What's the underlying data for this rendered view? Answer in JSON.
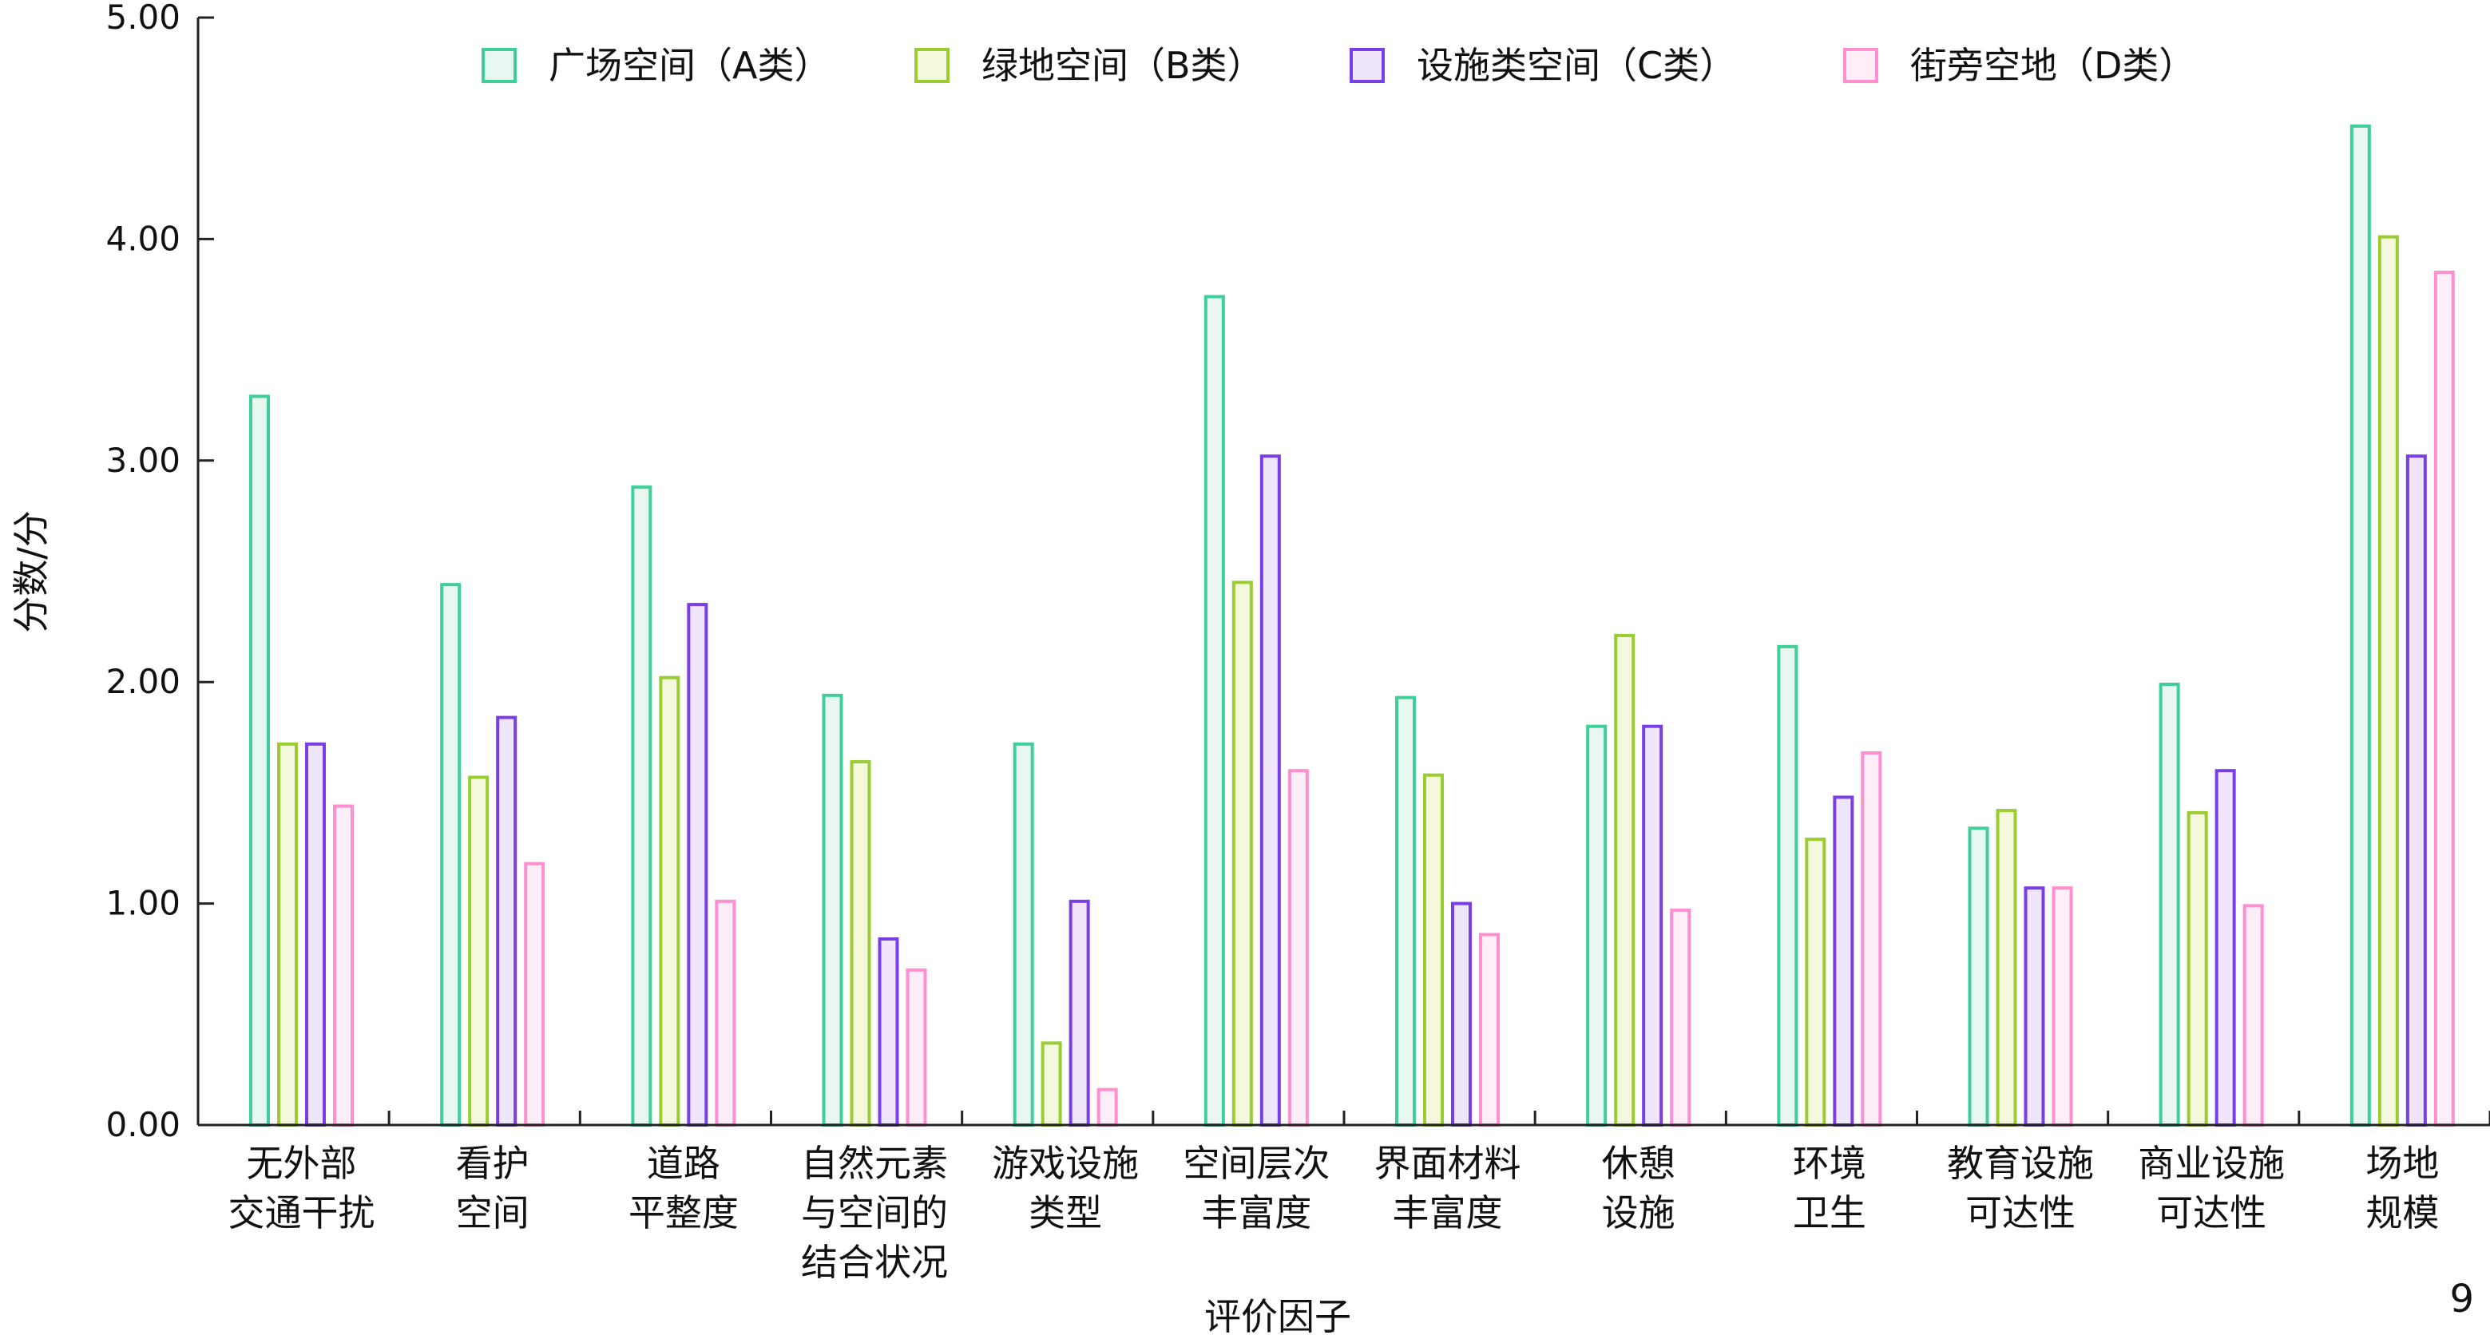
{
  "figure_number": "9",
  "chart_data": {
    "type": "bar",
    "xlabel": "评价因子",
    "ylabel": "分数/分",
    "ylim": [
      0,
      5
    ],
    "yticks": [
      "0.00",
      "1.00",
      "2.00",
      "3.00",
      "4.00",
      "5.00"
    ],
    "grid": false,
    "legend_position": "top",
    "categories": [
      [
        "无外部",
        "交通干扰"
      ],
      [
        "看护",
        "空间"
      ],
      [
        "道路",
        "平整度"
      ],
      [
        "自然元素",
        "与空间的",
        "结合状况"
      ],
      [
        "游戏设施",
        "类型"
      ],
      [
        "空间层次",
        "丰富度"
      ],
      [
        "界面材料",
        "丰富度"
      ],
      [
        "休憩",
        "设施"
      ],
      [
        "环境",
        "卫生"
      ],
      [
        "教育设施",
        "可达性"
      ],
      [
        "商业设施",
        "可达性"
      ],
      [
        "场地",
        "规模"
      ]
    ],
    "series": [
      {
        "name": "广场空间（A类）",
        "stroke": "#3ecf9a",
        "fill": "#e8f8f1",
        "values": [
          3.29,
          2.44,
          2.88,
          1.94,
          1.72,
          3.74,
          1.93,
          1.8,
          2.16,
          1.34,
          1.99,
          4.51
        ]
      },
      {
        "name": "绿地空间（B类）",
        "stroke": "#9acd32",
        "fill": "#f4f8dc",
        "values": [
          1.72,
          1.57,
          2.02,
          1.64,
          0.37,
          2.45,
          1.58,
          2.21,
          1.29,
          1.42,
          1.41,
          4.01
        ]
      },
      {
        "name": "设施类空间（C类）",
        "stroke": "#7a3ee6",
        "fill": "#efe6fb",
        "values": [
          1.72,
          1.84,
          2.35,
          0.84,
          1.01,
          3.02,
          1.0,
          1.8,
          1.48,
          1.07,
          1.6,
          3.02
        ]
      },
      {
        "name": "街旁空地（D类）",
        "stroke": "#ff8fd0",
        "fill": "#fdeef7",
        "values": [
          1.44,
          1.18,
          1.01,
          0.7,
          0.16,
          1.6,
          0.86,
          0.97,
          1.68,
          1.07,
          0.99,
          3.85
        ]
      }
    ]
  }
}
